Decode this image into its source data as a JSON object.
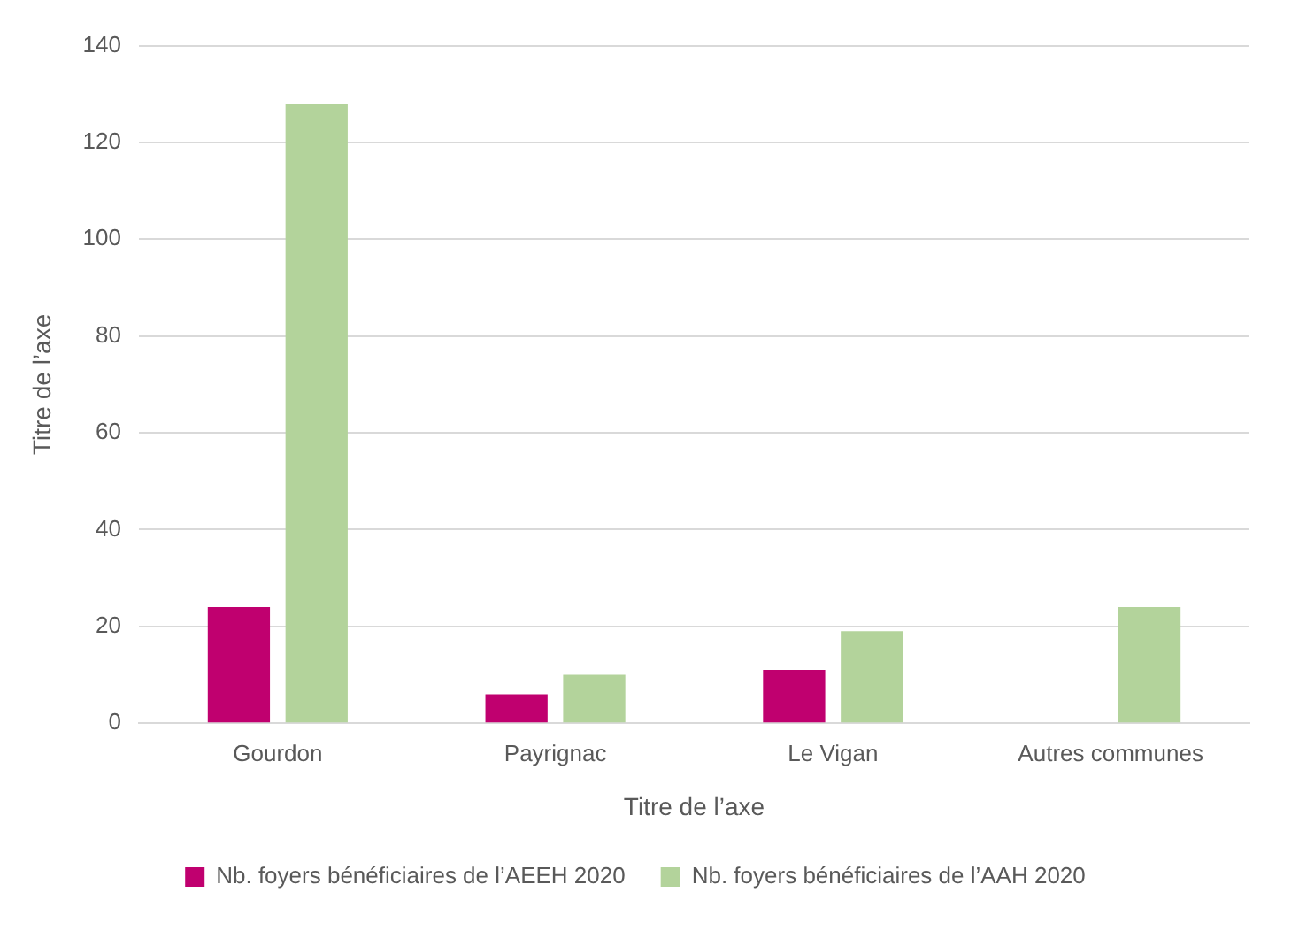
{
  "chart_data": {
    "type": "bar",
    "xlabel": "Titre de l’axe",
    "ylabel": "Titre de l’axe",
    "categories": [
      "Gourdon",
      "Payrignac",
      "Le Vigan",
      "Autres communes"
    ],
    "series": [
      {
        "name": "Nb. foyers bénéficiaires de l’AEEH 2020",
        "color": "#c0006f",
        "values": [
          24,
          6,
          11,
          null
        ]
      },
      {
        "name": "Nb. foyers bénéficiaires de l’AAH 2020",
        "color": "#b3d39b",
        "values": [
          128,
          10,
          19,
          24
        ]
      }
    ],
    "ylim": [
      0,
      140
    ],
    "yticks": [
      0,
      20,
      40,
      60,
      80,
      100,
      120,
      140
    ],
    "grid": "y",
    "legend": "bottom"
  }
}
